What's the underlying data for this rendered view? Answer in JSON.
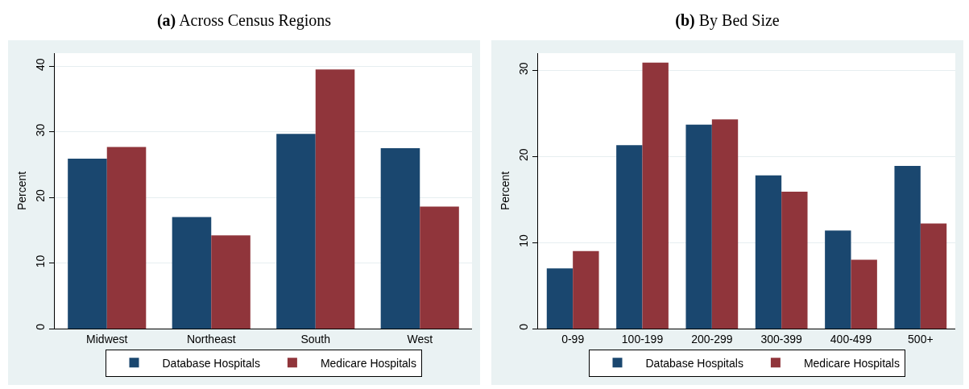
{
  "chart_data": [
    {
      "type": "bar",
      "title": "(a) Across Census Regions",
      "ylabel": "Percent",
      "categories": [
        "Midwest",
        "Northeast",
        "South",
        "West"
      ],
      "series": [
        {
          "name": "Database Hospitals",
          "color": "#1a476f",
          "values": [
            25.9,
            17.0,
            29.7,
            27.5
          ]
        },
        {
          "name": "Medicare Hospitals",
          "color": "#90353b",
          "values": [
            27.7,
            14.2,
            39.5,
            18.6
          ]
        }
      ],
      "ylim": [
        0,
        42
      ],
      "yticks": [
        0,
        10,
        20,
        30,
        40
      ],
      "grid": "y",
      "legend": "bottom"
    },
    {
      "type": "bar",
      "title": "(b) By Bed Size",
      "ylabel": "Percent",
      "categories": [
        "0-99",
        "100-199",
        "200-299",
        "300-399",
        "400-499",
        "500+"
      ],
      "series": [
        {
          "name": "Database Hospitals",
          "color": "#1a476f",
          "values": [
            7.0,
            21.3,
            23.7,
            17.8,
            11.4,
            18.9
          ]
        },
        {
          "name": "Medicare Hospitals",
          "color": "#90353b",
          "values": [
            9.0,
            30.9,
            24.3,
            15.9,
            8.0,
            12.2
          ]
        }
      ],
      "ylim": [
        0,
        32
      ],
      "yticks": [
        0,
        10,
        20,
        30
      ],
      "grid": "y",
      "legend": "bottom"
    }
  ]
}
